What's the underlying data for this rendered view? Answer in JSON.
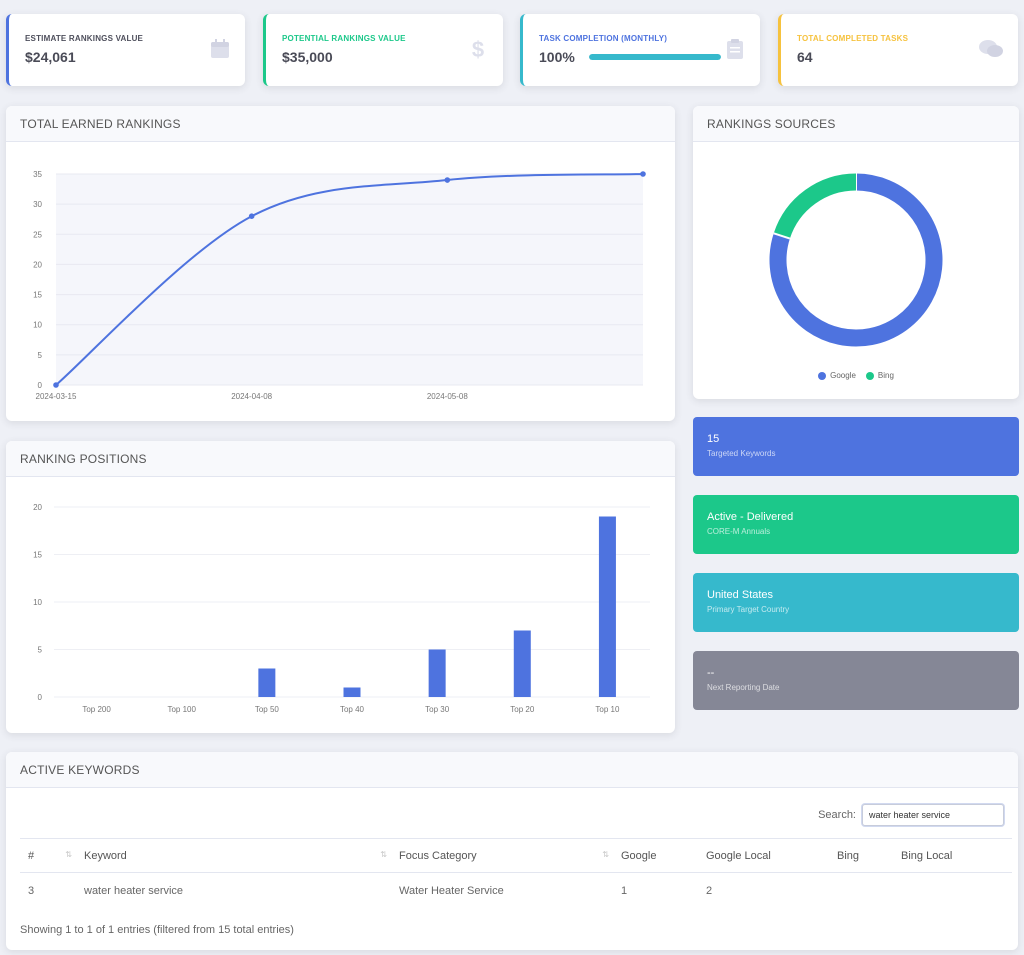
{
  "stats": [
    {
      "label": "ESTIMATE RANKINGS VALUE",
      "value": "$24,061",
      "icon": "calendar-icon"
    },
    {
      "label": "POTENTIAL RANKINGS VALUE",
      "value": "$35,000",
      "icon": "dollar-icon"
    },
    {
      "label": "TASK COMPLETION (MONTHLY)",
      "value": "100%",
      "progress": 1.0,
      "icon": "clipboard-icon"
    },
    {
      "label": "TOTAL COMPLETED TASKS",
      "value": "64",
      "icon": "comments-icon"
    }
  ],
  "earned": {
    "title": "TOTAL EARNED RANKINGS",
    "chart_data": {
      "type": "line",
      "x": [
        "2024-03-15",
        "2024-04-08",
        "2024-05-08",
        ""
      ],
      "x_tick_labels": [
        "2024-03-15",
        "2024-04-08",
        "2024-05-08"
      ],
      "values": [
        0,
        28,
        34,
        35
      ],
      "ylim": [
        0,
        35
      ],
      "yticks": [
        0,
        5,
        10,
        15,
        20,
        25,
        30,
        35
      ],
      "color": "#4e73df"
    }
  },
  "positions": {
    "title": "RANKING POSITIONS",
    "chart_data": {
      "type": "bar",
      "categories": [
        "Top 200",
        "Top 100",
        "Top 50",
        "Top 40",
        "Top 30",
        "Top 20",
        "Top 10"
      ],
      "values": [
        0,
        0,
        3,
        1,
        5,
        7,
        19
      ],
      "ylim": [
        0,
        20
      ],
      "yticks": [
        0,
        5,
        10,
        15,
        20
      ],
      "color": "#4e73df"
    }
  },
  "sources": {
    "title": "RANKINGS SOURCES",
    "chart_data": {
      "type": "pie",
      "labels": [
        "Google",
        "Bing"
      ],
      "values": [
        80,
        20
      ],
      "colors": [
        "#4e73df",
        "#1cc88a"
      ]
    }
  },
  "tiles": [
    {
      "big": "15",
      "small": "Targeted Keywords",
      "color": "#4e73df"
    },
    {
      "big": "Active - Delivered",
      "small": "CORE-M Annuals",
      "color": "#1cc88a"
    },
    {
      "big": "United States",
      "small": "Primary Target Country",
      "color": "#36b9cc"
    },
    {
      "big": "--",
      "small": "Next Reporting Date",
      "color": "#858796"
    }
  ],
  "keywords": {
    "title": "ACTIVE KEYWORDS",
    "search_label": "Search:",
    "search_value": "water heater service",
    "columns": [
      "#",
      "Keyword",
      "Focus Category",
      "Google",
      "Google Local",
      "Bing",
      "Bing Local"
    ],
    "rows": [
      [
        "3",
        "water heater service",
        "Water Heater Service",
        "1",
        "2",
        "",
        ""
      ]
    ],
    "showing": "Showing 1 to 1 of 1 entries (filtered from 15 total entries)"
  }
}
